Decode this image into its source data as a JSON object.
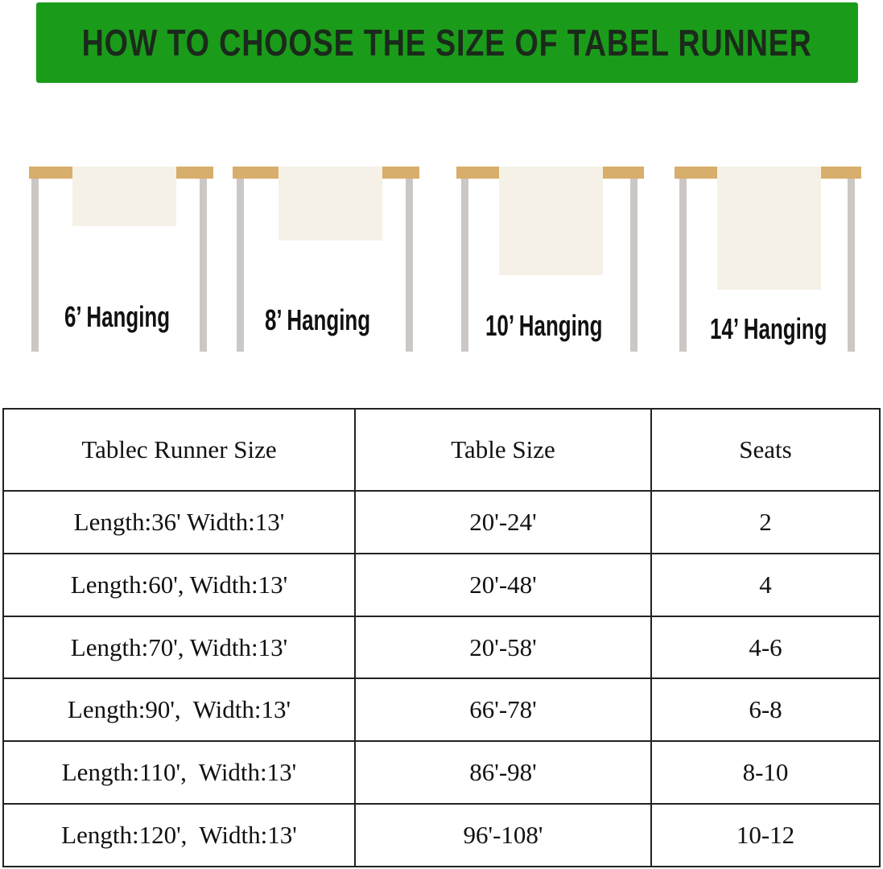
{
  "title": "HOW TO CHOOSE THE SIZE OF TABEL RUNNER",
  "colors": {
    "banner": "#1a9c1a",
    "table_top": "#d8ae6c",
    "runner": "#f5f1e6",
    "leg": "#cbc7c4"
  },
  "illustrations": [
    {
      "label": "6’ Hanging"
    },
    {
      "label": "8’ Hanging"
    },
    {
      "label": "10’ Hanging"
    },
    {
      "label": "14’ Hanging"
    }
  ],
  "table": {
    "headers": [
      "Tablec Runner Size",
      "Table Size",
      "Seats"
    ],
    "rows": [
      [
        "Length:36' Width:13'",
        "20'-24'",
        "2"
      ],
      [
        "Length:60', Width:13'",
        "20'-48'",
        "4"
      ],
      [
        "Length:70', Width:13'",
        "20'-58'",
        "4-6"
      ],
      [
        "Length:90',  Width:13'",
        "66'-78'",
        "6-8"
      ],
      [
        "Length:110',  Width:13'",
        "86'-98'",
        "8-10"
      ],
      [
        "Length:120',  Width:13'",
        "96'-108'",
        "10-12"
      ]
    ]
  }
}
